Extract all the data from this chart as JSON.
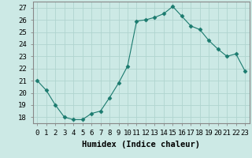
{
  "x": [
    0,
    1,
    2,
    3,
    4,
    5,
    6,
    7,
    8,
    9,
    10,
    11,
    12,
    13,
    14,
    15,
    16,
    17,
    18,
    19,
    20,
    21,
    22,
    23
  ],
  "y": [
    21.0,
    20.2,
    19.0,
    18.0,
    17.8,
    17.8,
    18.3,
    18.5,
    19.6,
    20.8,
    22.2,
    25.9,
    26.0,
    26.2,
    26.5,
    27.1,
    26.3,
    25.5,
    25.2,
    24.3,
    23.6,
    23.0,
    23.2,
    21.8
  ],
  "line_color": "#1a7a6e",
  "marker": "D",
  "marker_size": 2.5,
  "bg_color": "#cce9e5",
  "grid_color": "#b0d4cf",
  "xlabel": "Humidex (Indice chaleur)",
  "xlim": [
    -0.5,
    23.5
  ],
  "ylim": [
    17.5,
    27.5
  ],
  "yticks": [
    18,
    19,
    20,
    21,
    22,
    23,
    24,
    25,
    26,
    27
  ],
  "xtick_labels": [
    "0",
    "1",
    "2",
    "3",
    "4",
    "5",
    "6",
    "7",
    "8",
    "9",
    "10",
    "11",
    "12",
    "13",
    "14",
    "15",
    "16",
    "17",
    "18",
    "19",
    "20",
    "21",
    "22",
    "23"
  ],
  "xlabel_fontsize": 7.5,
  "tick_fontsize": 6.5,
  "spine_color": "#888888"
}
